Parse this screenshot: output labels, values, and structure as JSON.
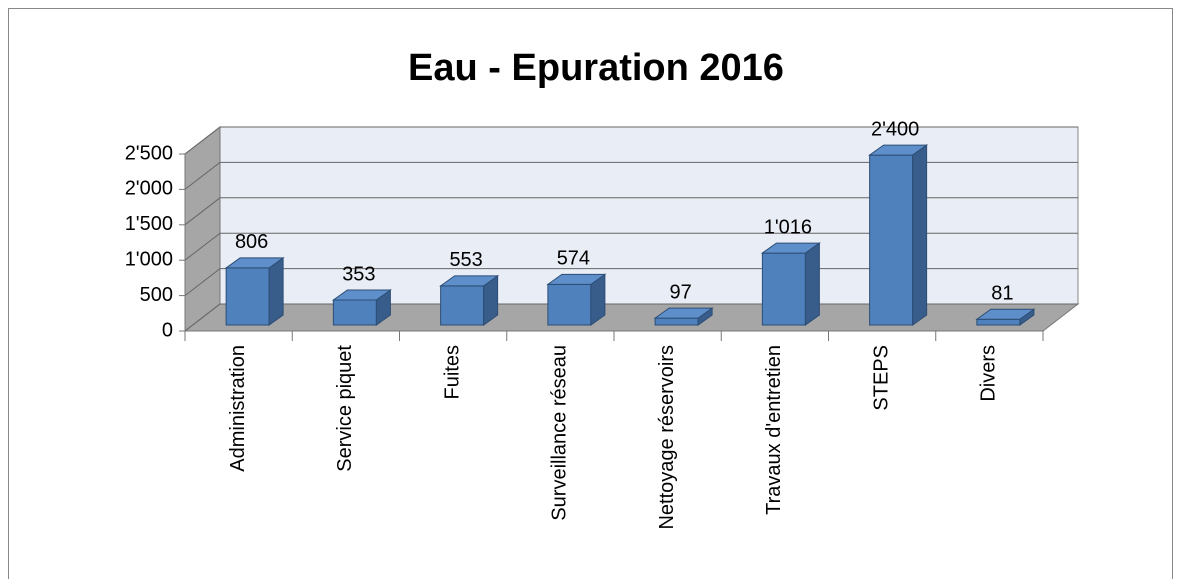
{
  "chart_data": {
    "type": "bar3d",
    "title": "Eau - Epuration 2016",
    "categories": [
      "Administration",
      "Service piquet",
      "Fuites",
      "Surveillance réseau",
      "Nettoyage réservoirs",
      "Travaux d'entretien",
      "STEPS",
      "Divers"
    ],
    "values": [
      806,
      353,
      553,
      574,
      97,
      1016,
      2400,
      81
    ],
    "value_labels": [
      "806",
      "353",
      "553",
      "574",
      "97",
      "1'016",
      "2'400",
      "81"
    ],
    "color": "#4f81bd",
    "ylim": [
      0,
      2500
    ],
    "yticks": [
      0,
      500,
      {
        "value": 1000,
        "label": "1'000"
      },
      {
        "value": 1500,
        "label": "1'500"
      },
      {
        "value": 2000,
        "label": "2'000"
      },
      {
        "value": 2500,
        "label": "2'500"
      }
    ],
    "grid": true
  }
}
